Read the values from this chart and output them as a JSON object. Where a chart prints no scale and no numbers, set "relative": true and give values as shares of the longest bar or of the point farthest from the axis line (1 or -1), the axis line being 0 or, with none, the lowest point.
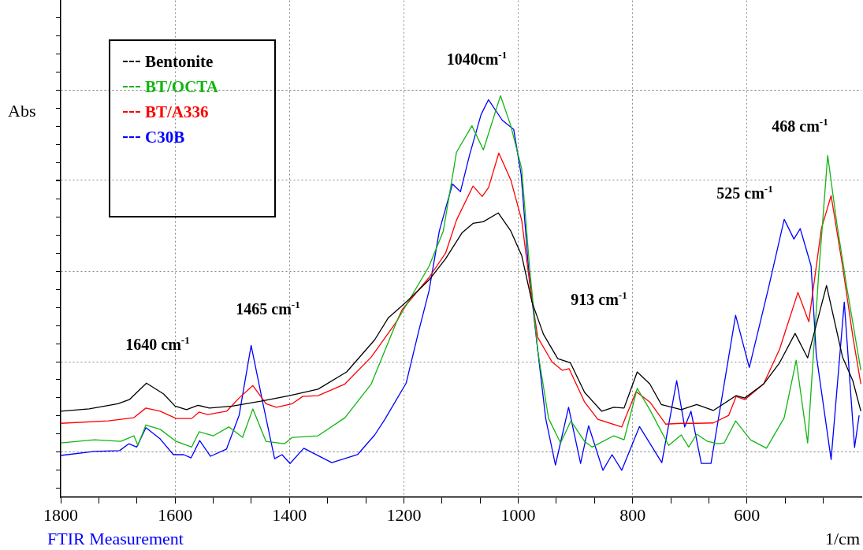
{
  "chart_data": {
    "type": "line",
    "relative": true,
    "ylabel": "Abs",
    "xlabel": "1/cm",
    "xlim": [
      1800,
      400
    ],
    "xticks": [
      1800,
      {
        "value": 1733.3,
        "label": null
      },
      {
        "value": 1666.7,
        "label": null
      },
      1600,
      {
        "value": 1533.3,
        "label": null
      },
      {
        "value": 1466.7,
        "label": null
      },
      1400,
      {
        "value": 1333.3,
        "label": null
      },
      {
        "value": 1266.7,
        "label": null
      },
      1200,
      {
        "value": 1133.3,
        "label": null
      },
      {
        "value": 1066.7,
        "label": null
      },
      1000,
      {
        "value": 933.3,
        "label": null
      },
      {
        "value": 866.7,
        "label": null
      },
      800,
      {
        "value": 733.3,
        "label": null
      },
      {
        "value": 666.7,
        "label": null
      },
      600,
      {
        "value": 533.3,
        "label": null
      },
      {
        "value": 466.7,
        "label": null
      }
    ],
    "grid": true,
    "legend": "top left",
    "marker": "none",
    "line_style": "solid",
    "annotations": [
      "1040cm$^{-1}$",
      "1465 cm$^{-1}$",
      "1640 cm$^{-1}$",
      "913 cm$^{-1}$",
      "525 cm$^{-1}$",
      "468 cm$^{-1}$",
      "FTIR Measurement"
    ],
    "series": [
      {
        "name": "Bentonite",
        "color": "#000000",
        "x": [
          1800,
          1750,
          1700,
          1680,
          1650,
          1620,
          1600,
          1580,
          1560,
          1540,
          1500,
          1450,
          1400,
          1350,
          1300,
          1251,
          1227,
          1196,
          1156,
          1127,
          1098,
          1079,
          1061,
          1035,
          1013,
          994,
          976,
          956,
          931,
          909,
          884,
          854,
          833,
          815,
          792,
          770,
          750,
          715,
          688,
          659,
          619,
          604,
          571,
          543,
          516,
          494,
          461,
          433,
          415,
          401
        ],
        "values": [
          0.214,
          0.22,
          0.233,
          0.243,
          0.284,
          0.257,
          0.227,
          0.218,
          0.229,
          0.222,
          0.227,
          0.239,
          0.253,
          0.269,
          0.312,
          0.392,
          0.447,
          0.486,
          0.541,
          0.594,
          0.659,
          0.682,
          0.686,
          0.708,
          0.663,
          0.602,
          0.486,
          0.406,
          0.345,
          0.335,
          0.261,
          0.214,
          0.224,
          0.222,
          0.312,
          0.282,
          0.231,
          0.218,
          0.231,
          0.216,
          0.253,
          0.247,
          0.282,
          0.335,
          0.408,
          0.347,
          0.527,
          0.349,
          0.29,
          0.214
        ]
      },
      {
        "name": "BT/OCTA",
        "color": "#11b511",
        "x": [
          1800,
          1741,
          1695,
          1672,
          1665,
          1651,
          1626,
          1598,
          1571,
          1558,
          1533,
          1506,
          1482,
          1464,
          1441,
          1409,
          1395,
          1350,
          1303,
          1257,
          1212,
          1156,
          1131,
          1108,
          1081,
          1061,
          1031,
          1013,
          994,
          980,
          966,
          947,
          926,
          908,
          884,
          871,
          833,
          815,
          792,
          770,
          737,
          715,
          702,
          688,
          669,
          651,
          640,
          620,
          594,
          566,
          535,
          514,
          494,
          475,
          459,
          443,
          425,
          401
        ],
        "values": [
          0.135,
          0.143,
          0.139,
          0.153,
          0.129,
          0.18,
          0.169,
          0.139,
          0.125,
          0.163,
          0.153,
          0.175,
          0.149,
          0.22,
          0.139,
          0.133,
          0.149,
          0.153,
          0.198,
          0.282,
          0.439,
          0.575,
          0.663,
          0.859,
          0.925,
          0.865,
          1,
          0.925,
          0.818,
          0.569,
          0.365,
          0.196,
          0.135,
          0.19,
          0.139,
          0.125,
          0.153,
          0.143,
          0.271,
          0.218,
          0.129,
          0.155,
          0.125,
          0.157,
          0.139,
          0.133,
          0.135,
          0.19,
          0.143,
          0.122,
          0.198,
          0.341,
          0.135,
          0.551,
          0.851,
          0.682,
          0.518,
          0.316
        ]
      },
      {
        "name": "BT/A336",
        "color": "#ff0000",
        "x": [
          1800,
          1717,
          1672,
          1651,
          1626,
          1598,
          1571,
          1558,
          1543,
          1510,
          1488,
          1464,
          1441,
          1423,
          1395,
          1377,
          1350,
          1303,
          1257,
          1212,
          1203,
          1156,
          1127,
          1108,
          1079,
          1063,
          1052,
          1034,
          1013,
          994,
          980,
          966,
          941,
          923,
          911,
          884,
          861,
          819,
          794,
          770,
          742,
          715,
          688,
          659,
          632,
          619,
          604,
          571,
          543,
          511,
          492,
          470,
          453,
          433,
          415,
          401
        ],
        "values": [
          0.184,
          0.19,
          0.198,
          0.222,
          0.214,
          0.196,
          0.196,
          0.212,
          0.206,
          0.214,
          0.247,
          0.278,
          0.233,
          0.224,
          0.233,
          0.251,
          0.253,
          0.282,
          0.349,
          0.439,
          0.467,
          0.547,
          0.608,
          0.69,
          0.775,
          0.749,
          0.771,
          0.857,
          0.79,
          0.69,
          0.533,
          0.398,
          0.337,
          0.316,
          0.32,
          0.237,
          0.194,
          0.175,
          0.263,
          0.237,
          0.182,
          0.184,
          0.184,
          0.185,
          0.204,
          0.251,
          0.243,
          0.282,
          0.369,
          0.51,
          0.437,
          0.669,
          0.751,
          0.576,
          0.4,
          0.282
        ]
      },
      {
        "name": "C30B",
        "color": "#0000ff",
        "x": [
          1800,
          1741,
          1697,
          1681,
          1667,
          1651,
          1626,
          1603,
          1585,
          1572,
          1557,
          1538,
          1510,
          1488,
          1467,
          1446,
          1426,
          1413,
          1399,
          1375,
          1326,
          1281,
          1251,
          1234,
          1196,
          1174,
          1156,
          1138,
          1115,
          1101,
          1085,
          1065,
          1052,
          1028,
          1008,
          995,
          982,
          966,
          952,
          935,
          912,
          891,
          877,
          852,
          836,
          819,
          788,
          749,
          723,
          709,
          698,
          680,
          663,
          620,
          596,
          563,
          535,
          518,
          507,
          488,
          479,
          453,
          430,
          412,
          404
        ],
        "values": [
          0.104,
          0.114,
          0.116,
          0.133,
          0.125,
          0.173,
          0.145,
          0.106,
          0.106,
          0.098,
          0.141,
          0.102,
          0.12,
          0.204,
          0.378,
          0.231,
          0.096,
          0.106,
          0.084,
          0.122,
          0.086,
          0.106,
          0.155,
          0.192,
          0.284,
          0.414,
          0.514,
          0.663,
          0.78,
          0.761,
          0.853,
          0.953,
          0.99,
          0.939,
          0.916,
          0.804,
          0.569,
          0.367,
          0.196,
          0.08,
          0.224,
          0.084,
          0.178,
          0.067,
          0.106,
          0.067,
          0.176,
          0.086,
          0.29,
          0.175,
          0.214,
          0.084,
          0.084,
          0.453,
          0.323,
          0.518,
          0.692,
          0.643,
          0.669,
          0.576,
          0.355,
          0.094,
          0.486,
          0.124,
          0.204
        ]
      }
    ]
  }
}
